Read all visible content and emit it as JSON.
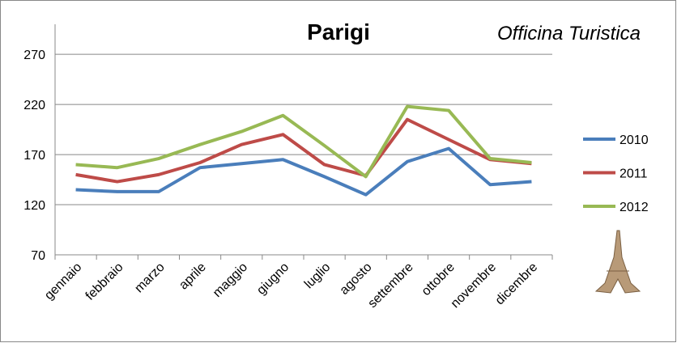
{
  "chart_data": {
    "type": "line",
    "title": "Parigi",
    "logo": "Officina Turistica",
    "categories": [
      "gennaio",
      "febbraio",
      "marzo",
      "aprile",
      "maggio",
      "giugno",
      "luglio",
      "agosto",
      "settembre",
      "ottobre",
      "novembre",
      "dicembre"
    ],
    "series": [
      {
        "name": "2010",
        "color": "#4a7ebb",
        "values": [
          135,
          133,
          133,
          157,
          161,
          165,
          148,
          130,
          163,
          176,
          140,
          143
        ]
      },
      {
        "name": "2011",
        "color": "#be4b48",
        "values": [
          150,
          143,
          150,
          162,
          180,
          190,
          160,
          149,
          205,
          185,
          165,
          161
        ]
      },
      {
        "name": "2012",
        "color": "#98b954",
        "values": [
          160,
          157,
          166,
          180,
          193,
          209,
          179,
          148,
          218,
          214,
          166,
          162
        ]
      }
    ],
    "ylim": [
      70,
      300
    ],
    "yticks": [
      70,
      120,
      170,
      220,
      270
    ],
    "grid": true,
    "legend": "right"
  }
}
